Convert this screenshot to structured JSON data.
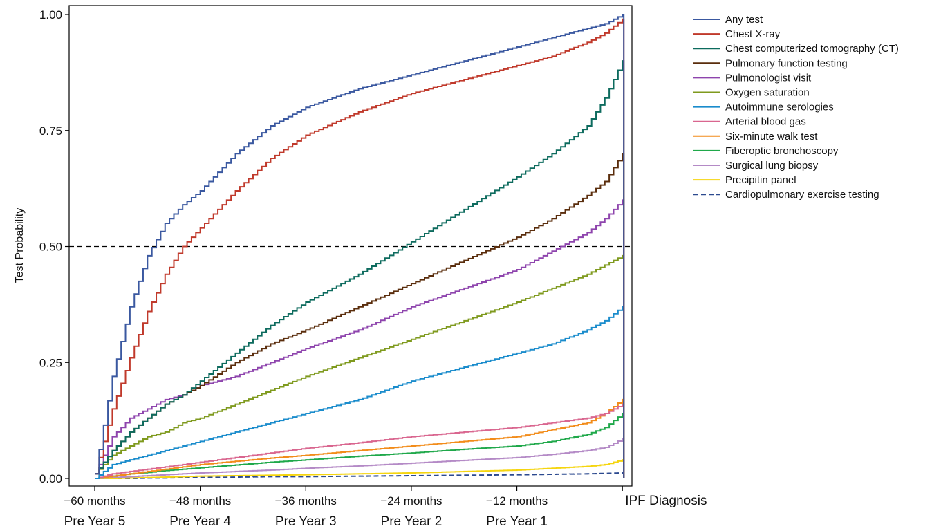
{
  "chart_data": {
    "type": "line",
    "ylabel": "Test Probability",
    "ylim": [
      0,
      1
    ],
    "yticks": [
      "0.00",
      "0.25",
      "0.50",
      "0.75",
      "1.00"
    ],
    "xlim": [
      -65,
      1
    ],
    "xticks": [
      {
        "x": -60,
        "label1": "−60 months",
        "label2": "Pre Year 5"
      },
      {
        "x": -48,
        "label1": "−48 months",
        "label2": "Pre Year 4"
      },
      {
        "x": -36,
        "label1": "−36 months",
        "label2": "Pre Year 3"
      },
      {
        "x": -24,
        "label1": "−24 months",
        "label2": "Pre Year 2"
      },
      {
        "x": -12,
        "label1": "−12 months",
        "label2": "Pre Year 1"
      },
      {
        "x": 0,
        "label1": "IPF Diagnosis",
        "label2": ""
      }
    ],
    "reference_line": {
      "y": 0.5,
      "style": "dashed"
    },
    "x": [
      -60,
      -58,
      -56,
      -54,
      -52,
      -50,
      -48,
      -44,
      -40,
      -36,
      -30,
      -24,
      -18,
      -12,
      -8,
      -4,
      -2,
      0
    ],
    "series": [
      {
        "name": "Any test",
        "color": "#3a58a0",
        "values": [
          0.01,
          0.22,
          0.37,
          0.48,
          0.55,
          0.59,
          0.62,
          0.7,
          0.76,
          0.8,
          0.84,
          0.87,
          0.9,
          0.93,
          0.95,
          0.97,
          0.98,
          1.0
        ]
      },
      {
        "name": "Chest X-ray",
        "color": "#c0392b",
        "values": [
          0.01,
          0.15,
          0.26,
          0.36,
          0.44,
          0.5,
          0.54,
          0.62,
          0.69,
          0.74,
          0.79,
          0.83,
          0.86,
          0.89,
          0.91,
          0.94,
          0.96,
          0.99
        ]
      },
      {
        "name": "Chest computerized tomography (CT)",
        "color": "#0d6b5e",
        "values": [
          0.01,
          0.06,
          0.1,
          0.13,
          0.16,
          0.18,
          0.21,
          0.27,
          0.33,
          0.38,
          0.44,
          0.51,
          0.58,
          0.65,
          0.7,
          0.76,
          0.82,
          0.9
        ]
      },
      {
        "name": "Pulmonary function testing",
        "color": "#5a2d0c",
        "values": [
          0.01,
          0.06,
          0.1,
          0.13,
          0.16,
          0.18,
          0.2,
          0.25,
          0.29,
          0.32,
          0.37,
          0.42,
          0.47,
          0.52,
          0.56,
          0.61,
          0.64,
          0.7
        ]
      },
      {
        "name": "Pulmonologist visit",
        "color": "#8e44ad",
        "values": [
          0.01,
          0.09,
          0.13,
          0.15,
          0.17,
          0.18,
          0.2,
          0.22,
          0.25,
          0.28,
          0.32,
          0.37,
          0.41,
          0.45,
          0.49,
          0.53,
          0.56,
          0.6
        ]
      },
      {
        "name": "Oxygen saturation",
        "color": "#7f9a1e",
        "values": [
          0.01,
          0.05,
          0.07,
          0.09,
          0.1,
          0.12,
          0.13,
          0.16,
          0.19,
          0.22,
          0.26,
          0.3,
          0.34,
          0.38,
          0.41,
          0.44,
          0.46,
          0.48
        ]
      },
      {
        "name": "Autoimmune serologies",
        "color": "#1a8ccc",
        "values": [
          0.0,
          0.03,
          0.04,
          0.05,
          0.06,
          0.07,
          0.08,
          0.1,
          0.12,
          0.14,
          0.17,
          0.21,
          0.24,
          0.27,
          0.29,
          0.32,
          0.34,
          0.37
        ]
      },
      {
        "name": "Arterial blood gas",
        "color": "#d9668f",
        "values": [
          0.0,
          0.01,
          0.015,
          0.02,
          0.025,
          0.03,
          0.035,
          0.045,
          0.055,
          0.065,
          0.077,
          0.09,
          0.1,
          0.11,
          0.12,
          0.13,
          0.14,
          0.16
        ]
      },
      {
        "name": "Six-minute walk test",
        "color": "#f28c1a",
        "values": [
          0.0,
          0.005,
          0.01,
          0.015,
          0.02,
          0.025,
          0.03,
          0.037,
          0.044,
          0.05,
          0.06,
          0.07,
          0.08,
          0.09,
          0.105,
          0.12,
          0.14,
          0.17
        ]
      },
      {
        "name": "Fiberoptic bronchoscopy",
        "color": "#1fa84a",
        "values": [
          0.0,
          0.005,
          0.01,
          0.013,
          0.017,
          0.02,
          0.023,
          0.029,
          0.035,
          0.04,
          0.048,
          0.055,
          0.063,
          0.07,
          0.08,
          0.095,
          0.11,
          0.14
        ]
      },
      {
        "name": "Surgical lung biopsy",
        "color": "#b48ac6",
        "values": [
          0.0,
          0.002,
          0.004,
          0.006,
          0.008,
          0.01,
          0.012,
          0.015,
          0.018,
          0.022,
          0.027,
          0.033,
          0.039,
          0.045,
          0.052,
          0.06,
          0.067,
          0.085
        ]
      },
      {
        "name": "Precipitin panel",
        "color": "#f5d50f",
        "values": [
          0.0,
          0.0,
          0.001,
          0.002,
          0.003,
          0.004,
          0.005,
          0.006,
          0.007,
          0.008,
          0.01,
          0.012,
          0.015,
          0.018,
          0.022,
          0.026,
          0.03,
          0.04
        ]
      },
      {
        "name": "Cardiopulmonary exercise testing",
        "color": "#2c4a8f",
        "dashed": true,
        "values": [
          0.0,
          0.0,
          0.0,
          0.001,
          0.001,
          0.002,
          0.002,
          0.003,
          0.004,
          0.004,
          0.005,
          0.006,
          0.007,
          0.008,
          0.009,
          0.01,
          0.011,
          0.012
        ]
      }
    ],
    "legend_position": "outside-right"
  }
}
